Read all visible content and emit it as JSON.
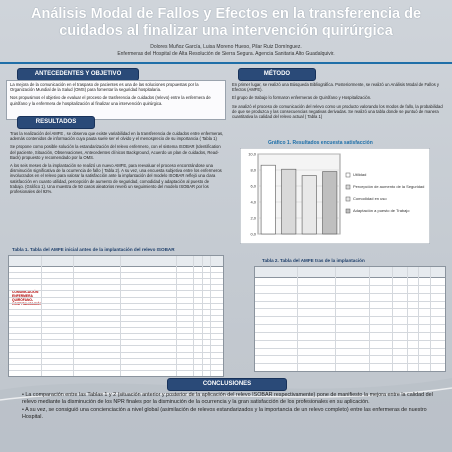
{
  "title": "Análisis Modal de Fallos y Efectos en la transferencia de cuidados al finalizar una intervención quirúrgica",
  "authors": "Dolores Muñoz García, Luisa Moreno Hueso, Pilar Ruiz Domínguez.",
  "affiliation": "Enfermeras del Hospital de Alta Resolución de Sierra Segura. Agencia Sanitaria Alto Guadalquivir.",
  "sections": {
    "antecedentes": {
      "heading": "ANTECEDENTES Y OBJETIVO",
      "p1": "La mejora de la comunicación en el traspaso de pacientes es una de las soluciones propuestas por la Organización Mundial de la Salud (OMS) para fomentar la seguridad hospitalaria.",
      "p2": "Nos propusimos el objetivo de evaluar el proceso de trasferencia de cuidados (relevo) entre la enfermera de quirófano y la enfermera de hospitalización al finalizar una intervención quirúrgica."
    },
    "metodo": {
      "heading": "MÉTODO",
      "p1": "En primer lugar, se realizó una Búsqueda Bibliográfica. Posteriormente, se realizó un Análisis Modal de Fallos y Efectos (AMFE).",
      "p2": "El grupo de trabajo lo formaron enfermeras de Quirófano y Hospitalización.",
      "p3": "Se analizó el proceso de comunicación del relevo como un producto valorando los modos de fallo, la probabilidad de que se produzca y las consecuencias negativas derivadas. Se realizó una tabla donde se puntuó de manera cuantitativa la calidad del relevo actual ( Tabla 1)"
    },
    "resultados": {
      "heading": "RESULTADOS",
      "p1": "Tras la realización del AMFE , se observa que existe variabilidad en la transferencia de cuidados entre enfermeras, además contenidos de información cuya pauta suele ser el olvido y el menosprecio de su importancia ( Tabla 1)",
      "p2": "Se propone como posible solución la estandarización del relevo enfermero, con el sistema ISOBAR (Identification del paciente, Situación, Observaciones, Antecedentes clínicos Background, Acuerdo un plan de cuidados, Read-Back) propuesto y recomendado por la OMS.",
      "p3": "A los seis meses de la implantación se realizó un nuevo AMFE, para reevaluar el proceso encontrándose una disminución significativa de la ocurrencia de fallo ( Tabla 2). A su vez, una encuesta subjetiva entre los enfermeros involucrados en el relevo para valorar la satisfacción ante la implantación del modelo ISOBAR reflejó una clara satisfacción en cuanto utilidad, percepción de aumento de seguridad, comodidad y adaptación al puesto de trabajo. (Gráfico 1). Una muestra de 50 casos aleatorios reveló un seguimiento del modelo ISOBAR por los profesionales del 92%."
    },
    "conclusiones": {
      "heading": "CONCLUSIONES",
      "b1": "• La comparación entre las Tablas 1 y 2 (situación anterior y posterior de la aplicación del relevo ISOBAR respectivamente) pone de manifiesto la mejora entre la calidad del relevo mediante la disminución de los NPR finales por la disminución de la ocurrencia y la gran satisfacción de los profesionales en su aplicación.",
      "b2": "• A su vez, se consiguió una concienciación a nivel global (asimilación de relevos estandarizados y la importancia de un relevo completo) entre las enfermeras de nuestro Hospital."
    }
  },
  "table1": {
    "title": "Tabla 1. Tabla del AMFE inicial antes de la implantación del relevo ISOBAR",
    "side_label": "COMUNICACIÓN ENFERMERA QUIRÓFANO-HOSPITALIZACIÓN"
  },
  "table2": {
    "title": "Tabla 2. Tabla del AMFE tras de la implantación"
  },
  "chart_title": "Gráfico 1. Resultados encuesta satisfacción",
  "chart_data": {
    "type": "bar",
    "title": "Gráfico 1. Resultados encuesta satisfacción",
    "categories": [
      "Utilidad",
      "Percepción de aumento de la Seguridad",
      "Comodidad en uso",
      "Adaptación a puesto de Trabajo"
    ],
    "values": [
      8.6,
      8.1,
      7.3,
      7.8
    ],
    "ylim": [
      0,
      10
    ],
    "yticks": [
      "10,0",
      "8,0",
      "6,0",
      "4,0",
      "2,0",
      "0,0"
    ],
    "legend": [
      "Utilidad",
      "Percepción de aumento de la Seguridad",
      "Comodidad en uso",
      "Adaptación a puesto de Trabajo"
    ],
    "colors": [
      "#ffffff",
      "#d9d9d9",
      "#e8e8e8",
      "#bfbfbf"
    ],
    "legend_position": "right",
    "grid": true
  }
}
